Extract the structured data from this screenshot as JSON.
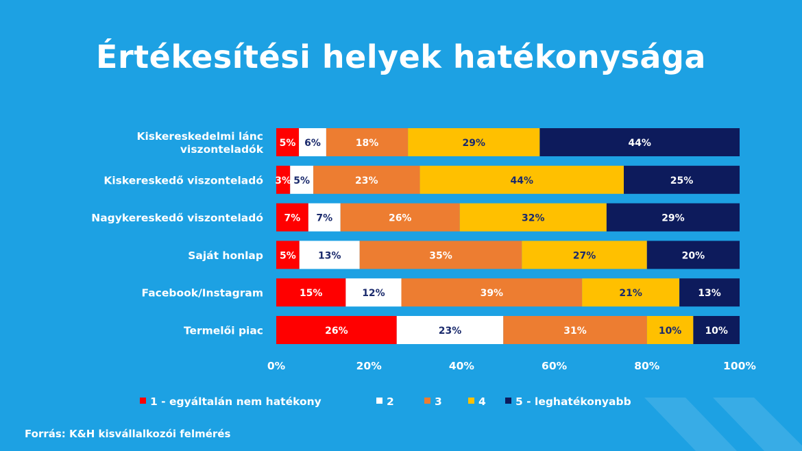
{
  "title": "Értékesítési helyek hatékonysága",
  "source": "Forrás: K&H kisvállalkozói felmérés",
  "colors": {
    "background": "#1da1e3",
    "series": [
      "#ff0000",
      "#ffffff",
      "#ed7d31",
      "#ffc000",
      "#0d1b5c"
    ]
  },
  "chart_data": {
    "type": "bar",
    "orientation": "horizontal",
    "stacked": true,
    "categories": [
      [
        "Kiskereskedelmi lánc",
        "viszonteladók"
      ],
      [
        "Kiskereskedő viszonteladó"
      ],
      [
        "Nagykereskedő viszonteladó"
      ],
      [
        "Saját honlap"
      ],
      [
        "Facebook/Instagram"
      ],
      [
        "Termelői piac"
      ]
    ],
    "series": [
      {
        "name": "1 - egyáltalán nem hatékony",
        "values": [
          5,
          3,
          7,
          5,
          15,
          26
        ],
        "labels": [
          "5%",
          "3%",
          "7%",
          "5%",
          "15%",
          "26%"
        ]
      },
      {
        "name": "2",
        "values": [
          6,
          5,
          7,
          13,
          12,
          23
        ],
        "labels": [
          "6%",
          "5%",
          "7%",
          "13%",
          "12%",
          "23%"
        ]
      },
      {
        "name": "3",
        "values": [
          18,
          23,
          26,
          35,
          39,
          31
        ],
        "labels": [
          "18%",
          "23%",
          "26%",
          "35%",
          "39%",
          "31%"
        ]
      },
      {
        "name": "4",
        "values": [
          29,
          44,
          32,
          27,
          21,
          10
        ],
        "labels": [
          "29%",
          "44%",
          "32%",
          "27%",
          "21%",
          "10%"
        ]
      },
      {
        "name": "5 - leghatékonyabb",
        "values": [
          44,
          25,
          29,
          20,
          13,
          10
        ],
        "labels": [
          "44%",
          "25%",
          "29%",
          "20%",
          "13%",
          "10%"
        ]
      }
    ],
    "xlim": [
      0,
      100
    ],
    "x_ticks": [
      "0%",
      "20%",
      "40%",
      "60%",
      "80%",
      "100%"
    ],
    "grid": false,
    "legend_position": "bottom"
  }
}
